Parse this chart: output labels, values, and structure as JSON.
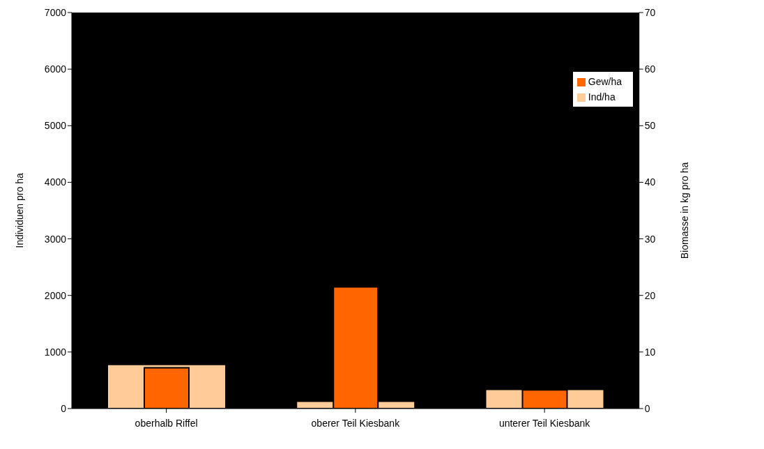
{
  "chart_data": {
    "type": "bar",
    "categories": [
      "oberhalb Riffel",
      "oberer Teil Kiesbank",
      "unterer Teil Kiesbank"
    ],
    "ylabel": "Individuen pro ha",
    "y2label": "Biomasse in kg pro ha",
    "series": [
      {
        "name": "Ind/ha",
        "color": "#ffcc99",
        "values": [
          780,
          130,
          340
        ]
      },
      {
        "name": "Gew/ha",
        "color": "#ff6600",
        "values": [
          7.2,
          21.5,
          3.3
        ],
        "axis": "y2"
      }
    ],
    "ylim": [
      0,
      7000
    ],
    "yticks": [
      0,
      1000,
      2000,
      3000,
      4000,
      5000,
      6000,
      7000
    ],
    "y2lim": [
      0,
      70
    ],
    "y2ticks": [
      0,
      10,
      20,
      30,
      40,
      50,
      60,
      70
    ],
    "legend": "top right",
    "grid": false
  }
}
